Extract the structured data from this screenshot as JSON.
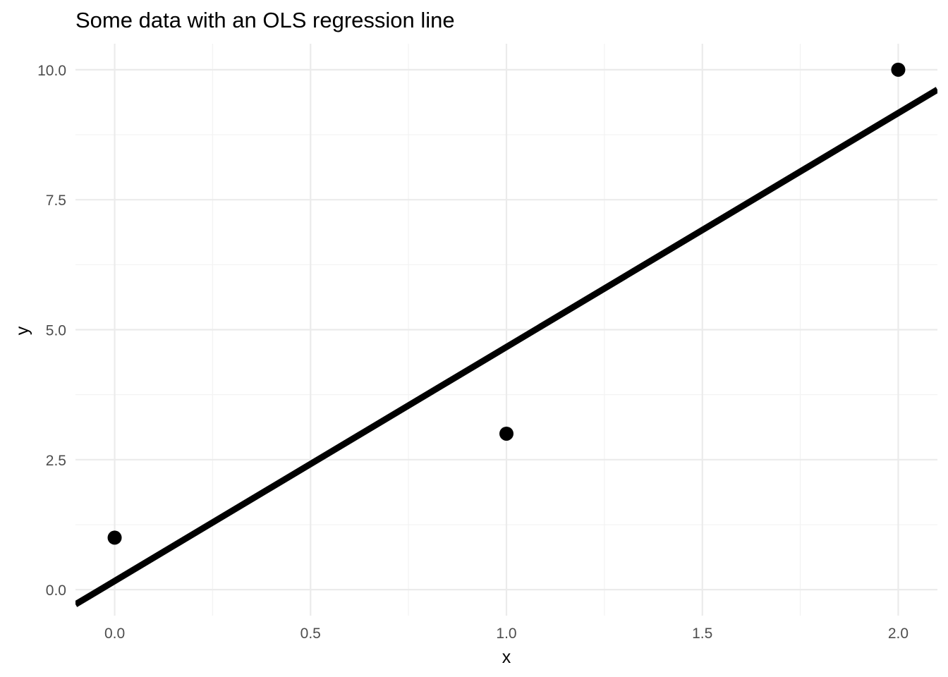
{
  "chart_data": {
    "type": "scatter",
    "title": "Some data with an OLS regression line",
    "xlabel": "x",
    "ylabel": "y",
    "xlim": [
      -0.1,
      2.1
    ],
    "ylim": [
      -0.5,
      10.5
    ],
    "grid": true,
    "x_ticks": [
      0.0,
      0.5,
      1.0,
      1.5,
      2.0
    ],
    "x_tick_labels": [
      "0.0",
      "0.5",
      "1.0",
      "1.5",
      "2.0"
    ],
    "y_ticks": [
      0.0,
      2.5,
      5.0,
      7.5,
      10.0
    ],
    "y_tick_labels": [
      "0.0",
      "2.5",
      "5.0",
      "7.5",
      "10.0"
    ],
    "points": {
      "x": [
        0,
        1,
        2
      ],
      "y": [
        1,
        3,
        10
      ]
    },
    "regression_line": {
      "intercept": 0.1667,
      "slope": 4.5
    },
    "colors": {
      "points": "#000000",
      "line": "#000000",
      "grid": "#ebebeb"
    }
  }
}
